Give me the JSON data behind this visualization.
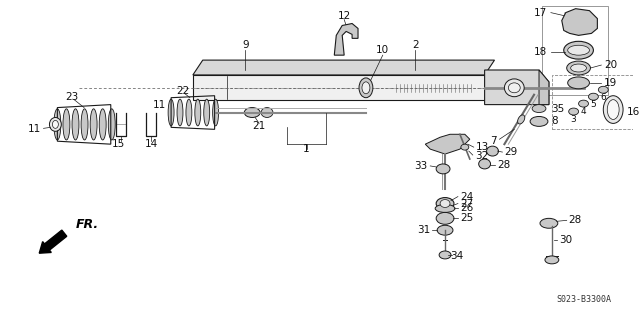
{
  "bg_color": "#ffffff",
  "line_color": "#1a1a1a",
  "fill_light": "#e8e8e8",
  "fill_mid": "#c8c8c8",
  "fill_dark": "#a0a0a0",
  "diagram_code": "S023-B3300A",
  "label_fs": 7.5,
  "label_color": "#111111"
}
